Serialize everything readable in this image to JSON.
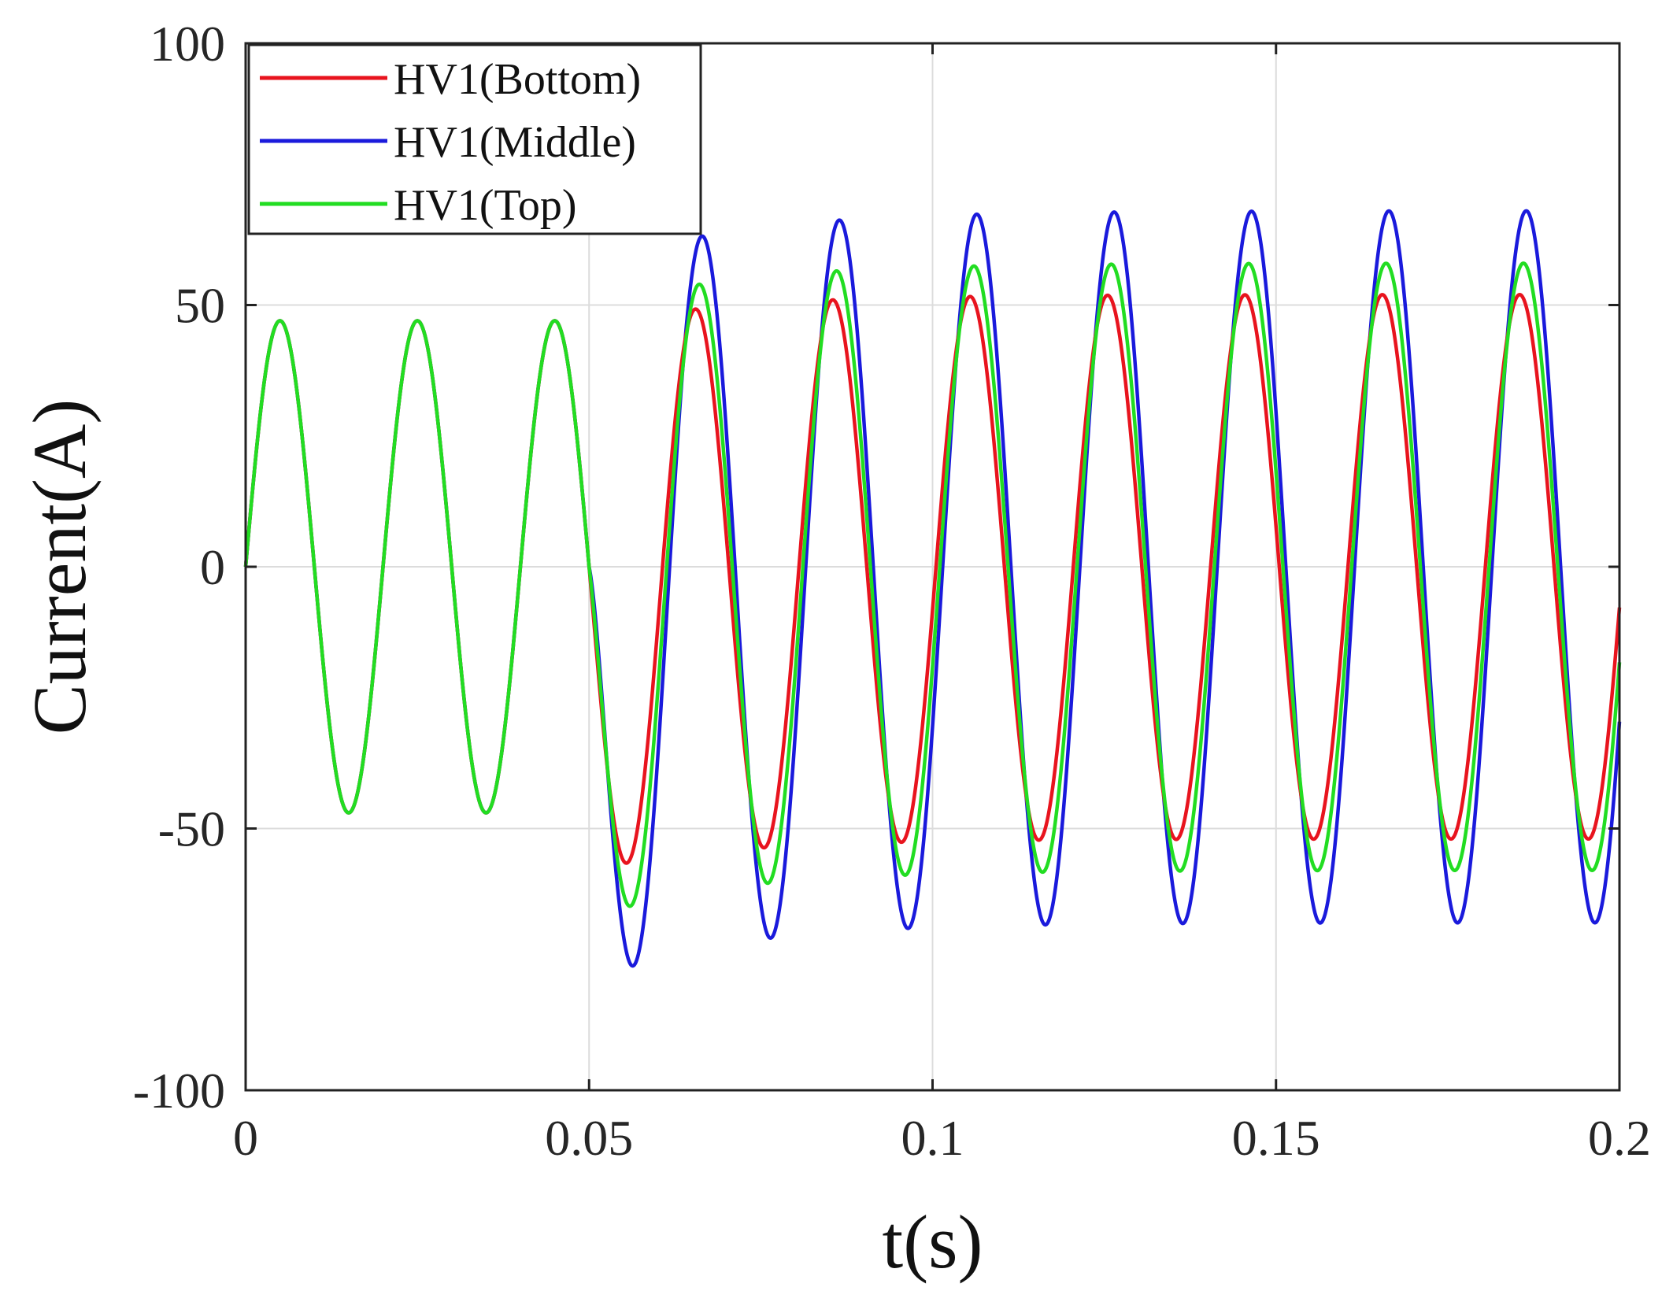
{
  "chart_data": {
    "type": "line",
    "title": "",
    "xlabel": "t(s)",
    "ylabel": "Current(A)",
    "xlim": [
      0,
      0.2
    ],
    "ylim": [
      -100,
      100
    ],
    "xticks": [
      0,
      0.05,
      0.1,
      0.15,
      0.2
    ],
    "xtick_labels": [
      "0",
      "0.05",
      "0.1",
      "0.15",
      "0.2"
    ],
    "yticks": [
      -100,
      -50,
      0,
      50,
      100
    ],
    "ytick_labels": [
      "-100",
      "-50",
      "0",
      "50",
      "100"
    ],
    "grid": true,
    "legend_position": "top-left",
    "fault_time": 0.05,
    "frequency_hz": 50,
    "pre_fault_amplitude": 47,
    "series": [
      {
        "name": "HV1(Bottom)",
        "color": "#e8141e",
        "steady_amplitude": 52,
        "post_fault_dc_offset": -6,
        "dc_time_constant": 0.02,
        "post_fault_phase_lag": 0.15,
        "first_peak": 48,
        "first_trough": -61,
        "steady_peak": 51,
        "steady_trough": -52
      },
      {
        "name": "HV1(Middle)",
        "color": "#1a1adc",
        "steady_amplitude": 68,
        "post_fault_dc_offset": -11,
        "dc_time_constant": 0.02,
        "post_fault_phase_lag": 0.45,
        "first_peak": 65,
        "first_trough": -82,
        "steady_peak": 68,
        "steady_trough": -67
      },
      {
        "name": "HV1(Top)",
        "color": "#22dd22",
        "steady_amplitude": 58,
        "post_fault_dc_offset": -9,
        "dc_time_constant": 0.02,
        "post_fault_phase_lag": 0.32,
        "first_peak": 52,
        "first_trough": -71,
        "steady_peak": 58,
        "steady_trough": -58
      }
    ]
  }
}
